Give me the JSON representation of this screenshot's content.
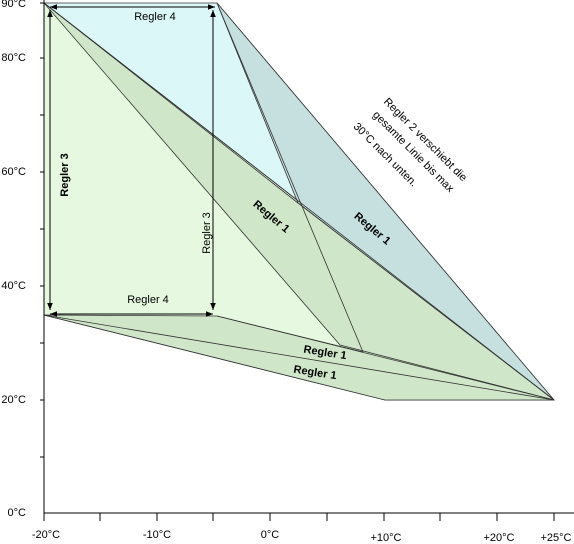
{
  "y_axis": {
    "labels": [
      "90°C",
      "80°C",
      "60°C",
      "40°C",
      "20°C",
      "0°C"
    ]
  },
  "x_axis": {
    "labels": [
      "-20°C",
      "-10°C",
      "0°C",
      "+10°C",
      "+20°C",
      "+25°C"
    ]
  },
  "annotations": {
    "regler4_top": "Regler 4",
    "regler4_bottom": "Regler 4",
    "regler3_left": "Regler 3",
    "regler3_mid": "Regler 3",
    "regler1_upper_right": "Regler 1",
    "regler1_mid": "Regler 1",
    "regler1_lower_a": "Regler 1",
    "regler1_lower_b": "Regler 1",
    "note": [
      "Regler 2 verschiebt die",
      "gesamte Linie bis max",
      "30°C nach unten."
    ]
  }
}
